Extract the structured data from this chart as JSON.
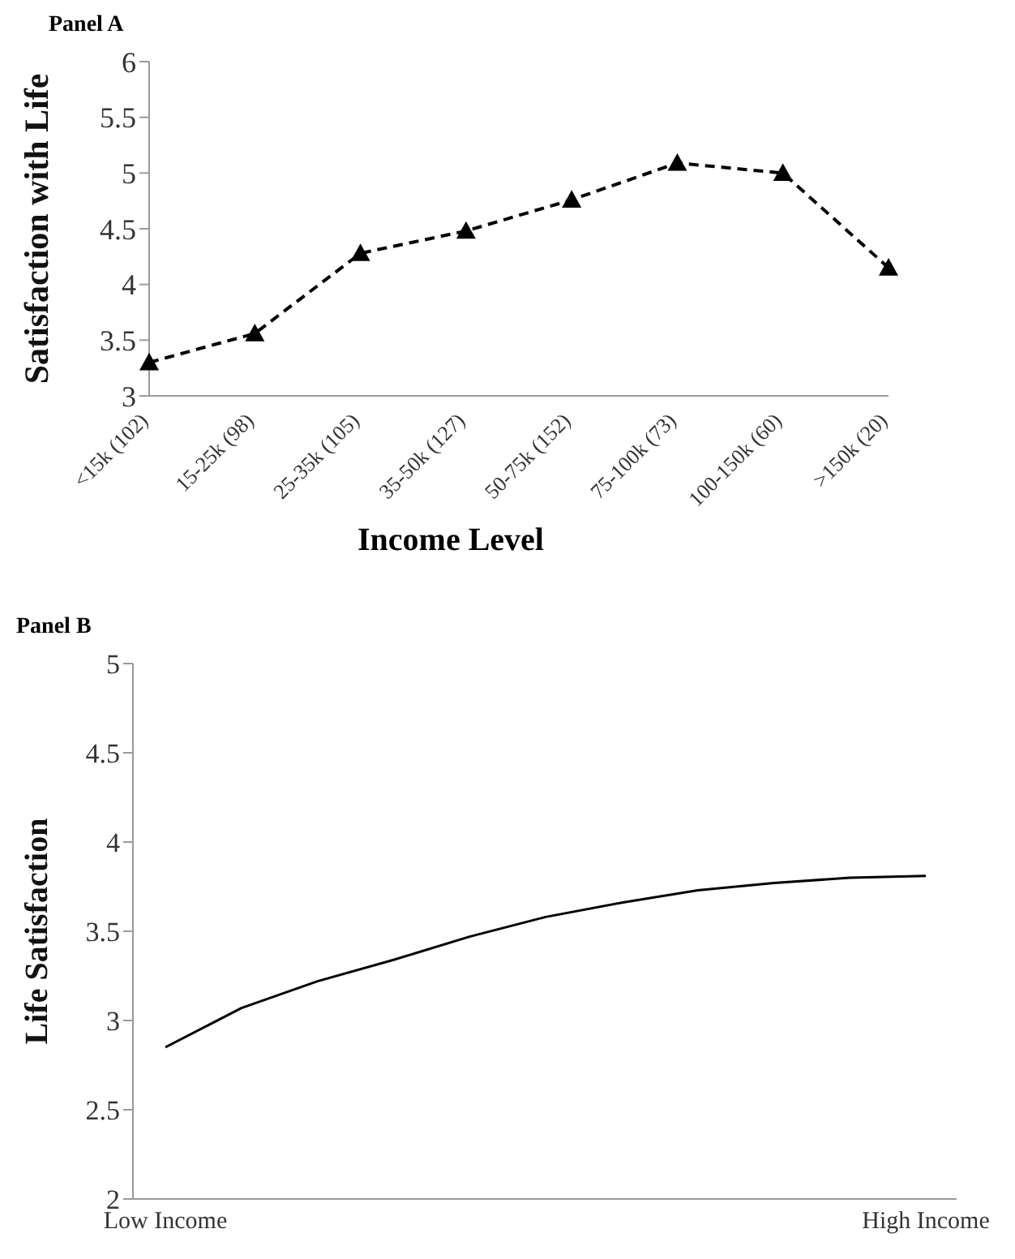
{
  "chart_data": [
    {
      "type": "line",
      "title": "Panel A",
      "xlabel": "Income Level",
      "ylabel": "Satisfaction with Life",
      "categories": [
        "<15k (102)",
        "15-25k (98)",
        "25-35k (105)",
        "35-50k (127)",
        "50-75k (152)",
        "75-100k (73)",
        "100-150k (60)",
        ">150k (20)"
      ],
      "values": [
        3.3,
        3.56,
        4.28,
        4.48,
        4.76,
        5.09,
        5.0,
        4.15
      ],
      "color": "#000000",
      "ylim": [
        3,
        6
      ],
      "yticks": [
        3,
        3.5,
        4,
        4.5,
        5,
        5.5,
        6
      ],
      "marker": "triangle",
      "line_style": "dashed"
    },
    {
      "type": "line",
      "title": "Panel B",
      "ylabel": "Life Satisfaction",
      "categories": [
        "Low Income",
        null,
        null,
        null,
        null,
        null,
        null,
        null,
        null,
        null,
        "High Income"
      ],
      "values": [
        2.85,
        3.07,
        3.22,
        3.34,
        3.47,
        3.58,
        3.66,
        3.73,
        3.77,
        3.8,
        3.81
      ],
      "color": "#000000",
      "ylim": [
        2,
        5
      ],
      "yticks": [
        2,
        2.5,
        3,
        3.5,
        4,
        4.5,
        5
      ],
      "line_style": "solid"
    }
  ]
}
